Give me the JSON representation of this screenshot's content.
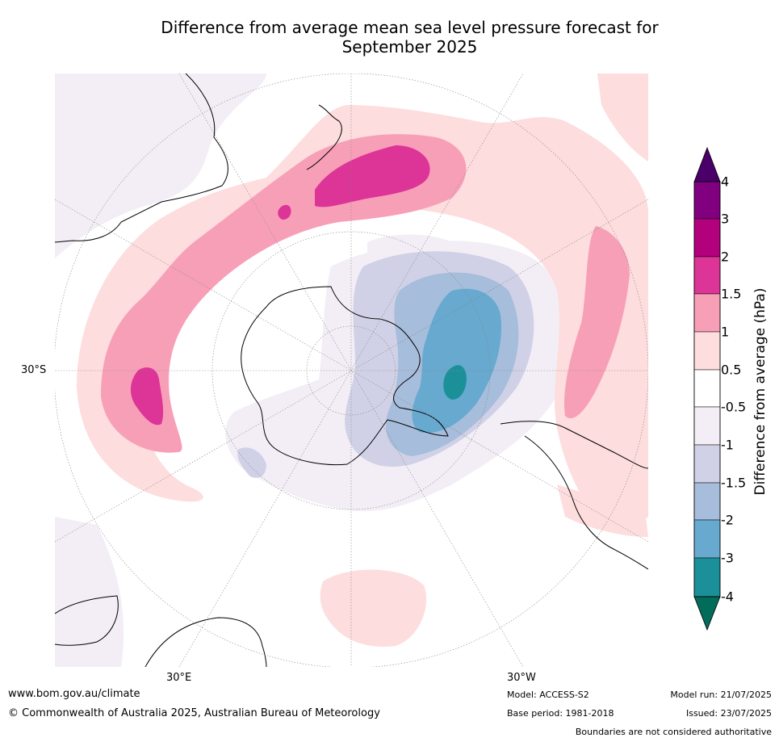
{
  "title_line1": "Difference from average mean sea level pressure forecast for",
  "title_line2": "September 2025",
  "lat_label": "30°S",
  "lon_labels": {
    "east": "30°E",
    "west": "30°W"
  },
  "colorbar": {
    "title": "Difference from average (hPa)",
    "levels": [
      "4",
      "3",
      "2",
      "1.5",
      "1",
      "0.5",
      "-0.5",
      "-1",
      "-1.5",
      "-2",
      "-3",
      "-4"
    ],
    "colors": {
      "above_4": "#4b0069",
      "3_to_4": "#800080",
      "2_to_3": "#b3007d",
      "1.5_to_2": "#dd3497",
      "1_to_1.5": "#f89fb8",
      "0.5_to_1": "#fddddd",
      "neutral": "#ffffff",
      "m1_to_m0.5": "#f3eef6",
      "m1.5_to_m1": "#d0d1e6",
      "m2_to_m1.5": "#a6bddb",
      "m3_to_m2": "#67a9cf",
      "m4_to_m3": "#1c9099",
      "below_m4": "#016c59"
    }
  },
  "footer": {
    "website": "www.bom.gov.au/climate",
    "copyright": "© Commonwealth of Australia 2025, Australian Bureau of Meteorology",
    "model": "Model: ACCESS-S2",
    "base_period": "Base period: 1981-2018",
    "model_run": "Model run: 21/07/2025",
    "issued": "Issued: 23/07/2025",
    "disclaimer": "Boundaries are not considered authoritative"
  }
}
